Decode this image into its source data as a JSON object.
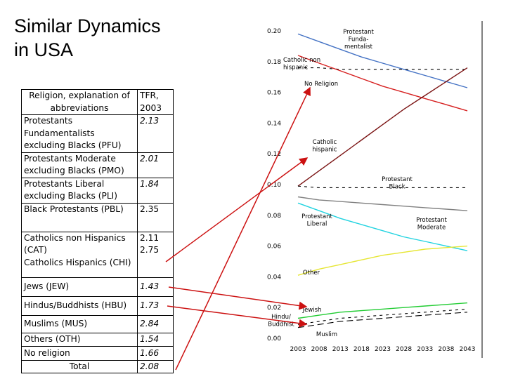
{
  "slide": {
    "title_lines": [
      "Similar Dynamics",
      "in USA"
    ]
  },
  "table": {
    "header": {
      "col1_lines": [
        "Religion, explanation of",
        "abbreviations"
      ],
      "col2_lines": [
        "TFR,",
        "2003"
      ]
    },
    "rows": [
      {
        "lines": [
          "Protestants",
          "Fundamentalists",
          "excluding Blacks (PFU)"
        ],
        "tfr": "2.13"
      },
      {
        "lines": [
          "Protestants Moderate",
          "excluding Blacks (PMO)"
        ],
        "tfr": "2.01"
      },
      {
        "lines": [
          "Protestants Liberal",
          "excluding Blacks (PLI)"
        ],
        "tfr": "1.84"
      },
      {
        "lines": [
          "Black Protestants (PBL)"
        ],
        "tfr": "2.35"
      },
      {
        "lines": [
          "Catholics non Hispanics",
          "(CAT)",
          "Catholics Hispanics (CHI)"
        ],
        "tfr_lines": [
          "2.11",
          "",
          "2.75"
        ]
      },
      {
        "lines": [
          "Jews (JEW)"
        ],
        "tfr": "1.43"
      },
      {
        "lines": [
          "Hindus/Buddhists (HBU)"
        ],
        "tfr": "1.73"
      },
      {
        "lines": [
          "Muslims (MUS)"
        ],
        "tfr": "2.84"
      },
      {
        "lines": [
          "Others (OTH)"
        ],
        "tfr": "1.54"
      },
      {
        "lines": [
          "No religion"
        ],
        "tfr": "1.66"
      }
    ],
    "total": {
      "label": "Total",
      "tfr": "2.08"
    }
  },
  "chart_data": {
    "type": "line",
    "x": [
      2003,
      2008,
      2013,
      2018,
      2023,
      2028,
      2033,
      2038,
      2043
    ],
    "x_tick_labels": [
      "2003",
      "2008",
      "2013",
      "2018",
      "2023",
      "2028",
      "2033",
      "2038",
      "2043"
    ],
    "y_tick_labels": [
      "0.20",
      "0.18",
      "0.16",
      "0.14",
      "0.12",
      "0.10",
      "0.08",
      "0.06",
      "0.04",
      "0.02",
      "0.00"
    ],
    "ylim": [
      0,
      0.2
    ],
    "xlim": [
      2003,
      2043
    ],
    "grid": false,
    "series": [
      {
        "name": "Protestant Funda- mentalist",
        "label_lines": [
          "Protestant",
          "Funda-",
          "mentalist"
        ],
        "color": "#4472c4",
        "dash": "solid",
        "values": [
          0.198,
          0.193,
          0.188,
          0.183,
          0.179,
          0.175,
          0.171,
          0.167,
          0.163
        ]
      },
      {
        "name": "Catholic non hispanic",
        "label_lines": [
          "Catholic non",
          "hispanic"
        ],
        "color": "#000000",
        "dash": "dashed",
        "values": [
          0.176,
          0.176,
          0.175,
          0.175,
          0.175,
          0.175,
          0.175,
          0.175,
          0.175
        ]
      },
      {
        "name": "No Religion",
        "label_lines": [
          "No Religion"
        ],
        "color": "#d62020",
        "dash": "solid",
        "values": [
          0.184,
          0.179,
          0.174,
          0.169,
          0.164,
          0.16,
          0.156,
          0.152,
          0.148
        ]
      },
      {
        "name": "Catholic hispanic",
        "label_lines": [
          "Catholic",
          "hispanic"
        ],
        "color": "#7b1414",
        "dash": "solid",
        "values": [
          0.099,
          0.109,
          0.119,
          0.129,
          0.139,
          0.149,
          0.158,
          0.167,
          0.176
        ]
      },
      {
        "name": "Protestant Black",
        "label_lines": [
          "Protestant",
          "Black"
        ],
        "color": "#000000",
        "dash": "dashed",
        "values": [
          0.099,
          0.098,
          0.098,
          0.098,
          0.098,
          0.098,
          0.098,
          0.098,
          0.098
        ]
      },
      {
        "name": "Protestant Moderate",
        "label_lines": [
          "Protestant",
          "Moderate"
        ],
        "color": "#808080",
        "dash": "solid",
        "values": [
          0.092,
          0.09,
          0.089,
          0.088,
          0.087,
          0.086,
          0.085,
          0.084,
          0.083
        ]
      },
      {
        "name": "Protestant Liberal",
        "label_lines": [
          "Protestant",
          "Liberal"
        ],
        "color": "#22d3e0",
        "dash": "solid",
        "values": [
          0.088,
          0.083,
          0.078,
          0.074,
          0.07,
          0.066,
          0.063,
          0.06,
          0.057
        ]
      },
      {
        "name": "Other",
        "label_lines": [
          "Other"
        ],
        "color": "#e6e633",
        "dash": "solid",
        "values": [
          0.041,
          0.045,
          0.048,
          0.051,
          0.054,
          0.056,
          0.058,
          0.059,
          0.06
        ]
      },
      {
        "name": "Jewish",
        "label_lines": [
          "Jewish"
        ],
        "color": "#22cc33",
        "dash": "solid",
        "values": [
          0.013,
          0.015,
          0.017,
          0.018,
          0.019,
          0.02,
          0.021,
          0.022,
          0.023
        ]
      },
      {
        "name": "Hindu/ Buddhist",
        "label_lines": [
          "Hindu/",
          "Buddhist"
        ],
        "color": "#000000",
        "dash": "dashed",
        "values": [
          0.009,
          0.011,
          0.013,
          0.014,
          0.015,
          0.016,
          0.017,
          0.018,
          0.019
        ]
      },
      {
        "name": "Muslim",
        "label_lines": [
          "Muslim"
        ],
        "color": "#000000",
        "dash": "longdash",
        "values": [
          0.007,
          0.009,
          0.011,
          0.012,
          0.013,
          0.014,
          0.015,
          0.016,
          0.017
        ]
      }
    ]
  },
  "arrows": {
    "color": "#cc1111",
    "links": [
      {
        "from_row": "no-religion",
        "to_series": "No Religion"
      },
      {
        "from_row": "catholics",
        "to_series": "Catholic hispanic"
      },
      {
        "from_row": "jews",
        "to_series": "Jewish"
      },
      {
        "from_row": "hindus",
        "to_series": "Hindu/ Buddhist"
      }
    ]
  }
}
